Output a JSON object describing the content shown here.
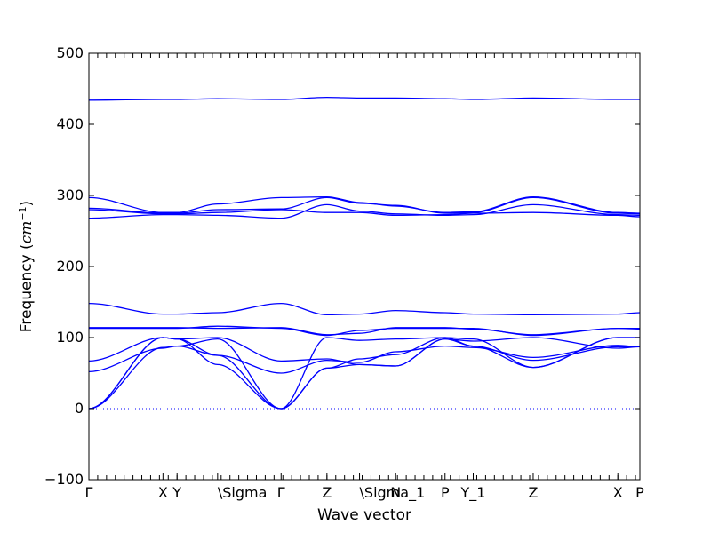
{
  "chart_data": {
    "type": "line",
    "title": "",
    "xlabel": "Wave vector",
    "ylabel": "Frequency ($cm^{-1}$)",
    "ylabel_parts": {
      "main": "Frequency (",
      "unit": "cm",
      "exp": "−1",
      "close": ")"
    },
    "ylim": [
      -100,
      500
    ],
    "xlim": [
      0,
      6.25
    ],
    "grid": false,
    "legend": "none",
    "line_color": "#0000ff",
    "zero_line": 0,
    "y_ticks": [
      {
        "value": -100,
        "label": "−100"
      },
      {
        "value": 0,
        "label": "0"
      },
      {
        "value": 100,
        "label": "100"
      },
      {
        "value": 200,
        "label": "200"
      },
      {
        "value": 300,
        "label": "300"
      },
      {
        "value": 400,
        "label": "400"
      },
      {
        "value": 500,
        "label": "500"
      }
    ],
    "high_symmetry_points": [
      {
        "x": 0.0,
        "label": "Γ"
      },
      {
        "x": 0.84,
        "label": "X"
      },
      {
        "x": 1.0,
        "label": "Y"
      },
      {
        "x": 1.46,
        "label": "\\Sigma"
      },
      {
        "x": 2.18,
        "label": "Γ"
      },
      {
        "x": 2.7,
        "label": "Z"
      },
      {
        "x": 3.07,
        "label": "\\Sigma_1"
      },
      {
        "x": 3.48,
        "label": "N"
      },
      {
        "x": 4.04,
        "label": "P"
      },
      {
        "x": 4.36,
        "label": "Y_1"
      },
      {
        "x": 5.04,
        "label": "Z"
      },
      {
        "x": 6.0,
        "label": "X"
      },
      {
        "x": 6.25,
        "label": "P"
      }
    ],
    "series": [
      {
        "x": [
          0,
          0.84,
          1.0,
          1.46,
          2.18,
          2.7,
          3.07,
          3.48,
          4.04,
          4.36,
          5.04,
          6.0,
          6.25
        ],
        "y": [
          0,
          100,
          98,
          75,
          0,
          57,
          62,
          60,
          98,
          88,
          58,
          100,
          100
        ]
      },
      {
        "x": [
          0,
          0.84,
          1.0,
          1.46,
          2.18,
          2.7,
          3.07,
          3.48,
          4.04,
          4.36,
          5.04,
          6.0,
          6.25
        ],
        "y": [
          0,
          100,
          98,
          62,
          0,
          57,
          70,
          76,
          100,
          98,
          58,
          100,
          100
        ]
      },
      {
        "x": [
          0,
          0.84,
          1.0,
          1.46,
          2.18,
          2.7,
          3.07,
          3.48,
          4.04,
          4.36,
          5.04,
          6.0,
          6.25
        ],
        "y": [
          0,
          86,
          88,
          98,
          0,
          100,
          96,
          98,
          100,
          88,
          68,
          87,
          87
        ]
      },
      {
        "x": [
          0,
          0.84,
          1.0,
          1.46,
          2.18,
          2.7,
          3.07,
          3.48,
          4.04,
          4.36,
          5.04,
          6.0,
          6.25
        ],
        "y": [
          52,
          85,
          88,
          75,
          50,
          68,
          65,
          80,
          88,
          86,
          72,
          89,
          87
        ]
      },
      {
        "x": [
          0,
          0.84,
          1.0,
          1.46,
          2.18,
          2.7,
          3.07,
          3.48,
          4.04,
          4.36,
          5.04,
          6.0,
          6.25
        ],
        "y": [
          67,
          100,
          98,
          100,
          67,
          70,
          62,
          60,
          98,
          95,
          100,
          85,
          87
        ]
      },
      {
        "x": [
          0,
          0.84,
          1.0,
          1.46,
          2.18,
          2.7,
          3.07,
          3.48,
          4.04,
          4.36,
          5.04,
          6.0,
          6.25
        ],
        "y": [
          113,
          113,
          113,
          116,
          113,
          103,
          110,
          113,
          113,
          113,
          103,
          113,
          112
        ]
      },
      {
        "x": [
          0,
          0.84,
          1.0,
          1.46,
          2.18,
          2.7,
          3.07,
          3.48,
          4.04,
          4.36,
          5.04,
          6.0,
          6.25
        ],
        "y": [
          114,
          114,
          114,
          113,
          114,
          104,
          106,
          114,
          114,
          112,
          104,
          113,
          113
        ]
      },
      {
        "x": [
          0,
          0.84,
          1.0,
          1.46,
          2.18,
          2.7,
          3.07,
          3.48,
          4.04,
          4.36,
          5.04,
          6.0,
          6.25
        ],
        "y": [
          148,
          133,
          133,
          135,
          148,
          132,
          133,
          138,
          135,
          133,
          132,
          133,
          135
        ]
      },
      {
        "x": [
          0,
          0.84,
          1.0,
          1.46,
          2.18,
          2.7,
          3.07,
          3.48,
          4.04,
          4.36,
          5.04,
          6.0,
          6.25
        ],
        "y": [
          268,
          273,
          273,
          272,
          268,
          287,
          278,
          274,
          272,
          273,
          287,
          273,
          272
        ]
      },
      {
        "x": [
          0,
          0.84,
          1.0,
          1.46,
          2.18,
          2.7,
          3.07,
          3.48,
          4.04,
          4.36,
          5.04,
          6.0,
          6.25
        ],
        "y": [
          280,
          274,
          274,
          276,
          280,
          276,
          276,
          272,
          273,
          275,
          276,
          272,
          270
        ]
      },
      {
        "x": [
          0,
          0.84,
          1.0,
          1.46,
          2.18,
          2.7,
          3.07,
          3.48,
          4.04,
          4.36,
          5.04,
          6.0,
          6.25
        ],
        "y": [
          282,
          275,
          275,
          280,
          281,
          297,
          289,
          286,
          275,
          276,
          297,
          275,
          274
        ]
      },
      {
        "x": [
          0,
          0.84,
          1.0,
          1.46,
          2.18,
          2.7,
          3.07,
          3.48,
          4.04,
          4.36,
          5.04,
          6.0,
          6.25
        ],
        "y": [
          297,
          276,
          276,
          288,
          297,
          298,
          290,
          285,
          276,
          277,
          298,
          276,
          275
        ]
      },
      {
        "x": [
          0,
          0.84,
          1.0,
          1.46,
          2.18,
          2.7,
          3.07,
          3.48,
          4.04,
          4.36,
          5.04,
          6.0,
          6.25
        ],
        "y": [
          434,
          435,
          435,
          436,
          435,
          438,
          437,
          437,
          436,
          435,
          437,
          435,
          435
        ]
      }
    ]
  }
}
